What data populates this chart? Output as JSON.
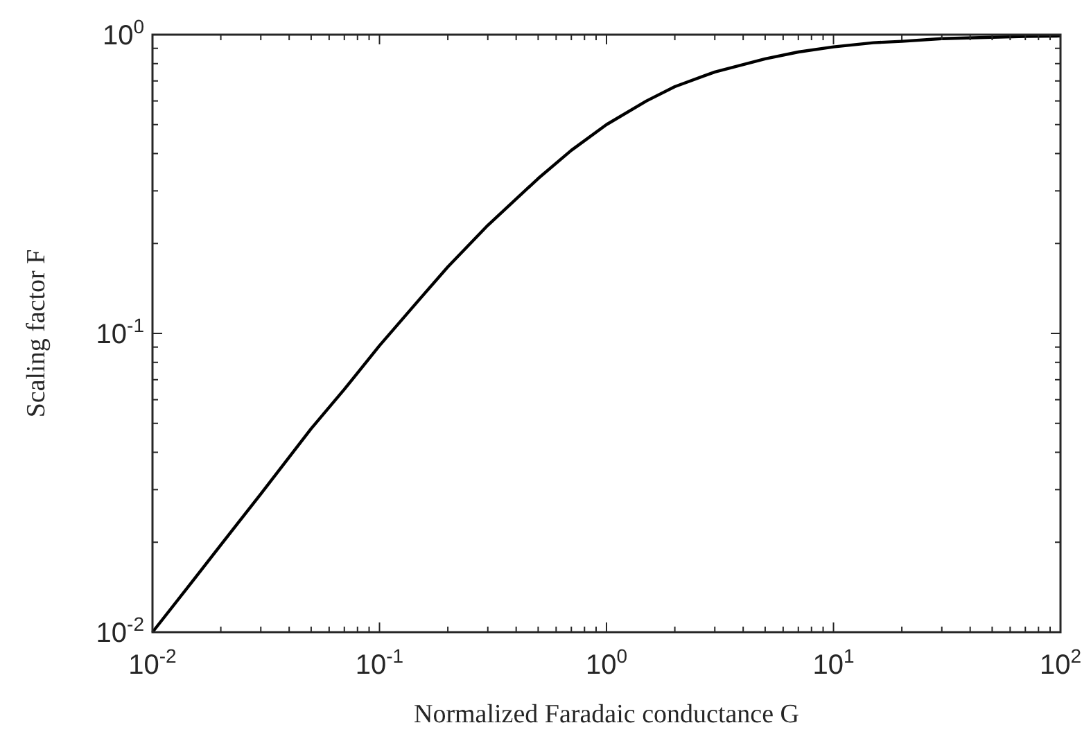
{
  "chart_data": {
    "type": "line",
    "xlabel": "Normalized Faradaic conductance G",
    "ylabel": "Scaling factor F",
    "log": "xy",
    "grid": false,
    "marker": "none",
    "line_style": "solid",
    "xlim": [
      0.01,
      100
    ],
    "ylim": [
      0.01,
      1
    ],
    "xticks": [
      {
        "value": 0.01,
        "label": "10$^{-2}$"
      },
      {
        "value": 0.02,
        "label": null
      },
      {
        "value": 0.03,
        "label": null
      },
      {
        "value": 0.04,
        "label": null
      },
      {
        "value": 0.05,
        "label": null
      },
      {
        "value": 0.06,
        "label": null
      },
      {
        "value": 0.07,
        "label": null
      },
      {
        "value": 0.08,
        "label": null
      },
      {
        "value": 0.09,
        "label": null
      },
      {
        "value": 0.1,
        "label": "10$^{-1}$"
      },
      {
        "value": 0.2,
        "label": null
      },
      {
        "value": 0.3,
        "label": null
      },
      {
        "value": 0.4,
        "label": null
      },
      {
        "value": 0.5,
        "label": null
      },
      {
        "value": 0.6,
        "label": null
      },
      {
        "value": 0.7,
        "label": null
      },
      {
        "value": 0.8,
        "label": null
      },
      {
        "value": 0.9,
        "label": null
      },
      {
        "value": 1,
        "label": "10$^{0}$"
      },
      {
        "value": 2,
        "label": null
      },
      {
        "value": 3,
        "label": null
      },
      {
        "value": 4,
        "label": null
      },
      {
        "value": 5,
        "label": null
      },
      {
        "value": 6,
        "label": null
      },
      {
        "value": 7,
        "label": null
      },
      {
        "value": 8,
        "label": null
      },
      {
        "value": 9,
        "label": null
      },
      {
        "value": 10,
        "label": "10$^{1}$"
      },
      {
        "value": 20,
        "label": null
      },
      {
        "value": 30,
        "label": null
      },
      {
        "value": 40,
        "label": null
      },
      {
        "value": 50,
        "label": null
      },
      {
        "value": 60,
        "label": null
      },
      {
        "value": 70,
        "label": null
      },
      {
        "value": 80,
        "label": null
      },
      {
        "value": 90,
        "label": null
      },
      {
        "value": 100,
        "label": "10$^{2}$"
      }
    ],
    "yticks": [
      {
        "value": 0.01,
        "label": "10$^{-2}$"
      },
      {
        "value": 0.02,
        "label": null
      },
      {
        "value": 0.03,
        "label": null
      },
      {
        "value": 0.04,
        "label": null
      },
      {
        "value": 0.05,
        "label": null
      },
      {
        "value": 0.06,
        "label": null
      },
      {
        "value": 0.07,
        "label": null
      },
      {
        "value": 0.08,
        "label": null
      },
      {
        "value": 0.09,
        "label": null
      },
      {
        "value": 0.1,
        "label": "10$^{-1}$"
      },
      {
        "value": 0.2,
        "label": null
      },
      {
        "value": 0.3,
        "label": null
      },
      {
        "value": 0.4,
        "label": null
      },
      {
        "value": 0.5,
        "label": null
      },
      {
        "value": 0.6,
        "label": null
      },
      {
        "value": 0.7,
        "label": null
      },
      {
        "value": 0.8,
        "label": null
      },
      {
        "value": 0.9,
        "label": null
      },
      {
        "value": 1,
        "label": "10$^{0}$"
      }
    ],
    "series": [
      {
        "color": "#000000",
        "x": [
          0.01,
          0.015,
          0.02,
          0.03,
          0.05,
          0.07,
          0.1,
          0.15,
          0.2,
          0.3,
          0.5,
          0.7,
          1,
          1.5,
          2,
          3,
          5,
          7,
          10,
          15,
          20,
          30,
          50,
          70,
          100
        ],
        "values": [
          0.01,
          0.0148,
          0.0196,
          0.029,
          0.048,
          0.065,
          0.091,
          0.13,
          0.167,
          0.23,
          0.33,
          0.41,
          0.5,
          0.6,
          0.67,
          0.75,
          0.83,
          0.875,
          0.91,
          0.94,
          0.95,
          0.97,
          0.98,
          0.986,
          0.99
        ]
      }
    ]
  }
}
